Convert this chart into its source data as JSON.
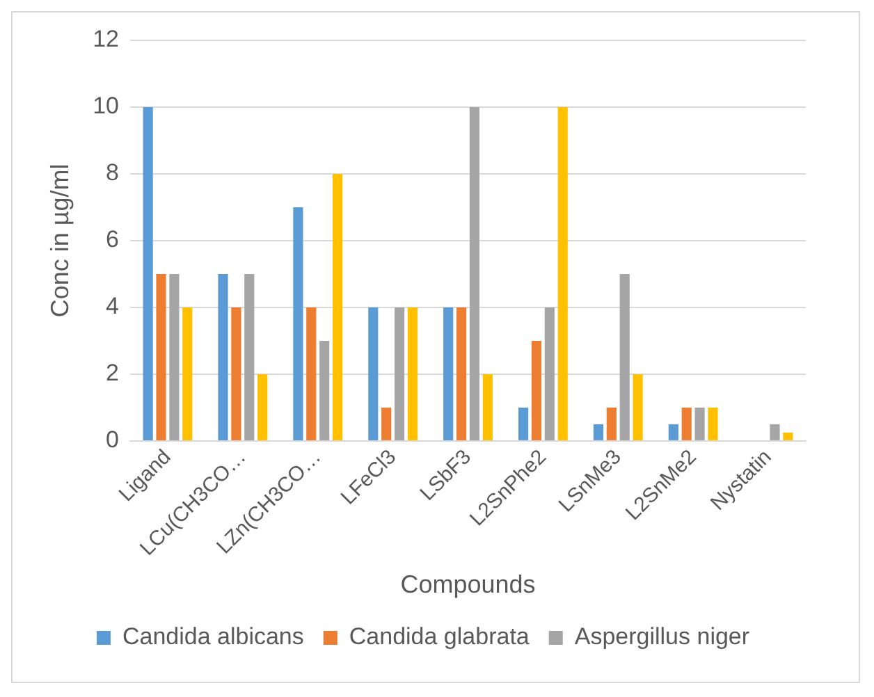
{
  "chart_data": {
    "type": "bar",
    "xlabel": "Compounds",
    "ylabel": "Conc in µg/ml",
    "categories": [
      "Ligand",
      "LCu(CH3CO…",
      "LZn(CH3CO…",
      "LFeCl3",
      "LSbF3",
      "L2SnPhe2",
      "LSnMe3",
      "L2SnMe2",
      "Nystatin"
    ],
    "series": [
      {
        "name": "Candida albicans",
        "color": "#5b9bd5",
        "values": [
          10,
          5,
          7,
          4,
          4,
          1,
          0.5,
          0.5,
          0
        ]
      },
      {
        "name": "Candida glabrata",
        "color": "#ed7d31",
        "values": [
          5,
          4,
          4,
          1,
          4,
          3,
          1,
          1,
          0
        ]
      },
      {
        "name": "Aspergillus niger",
        "color": "#a5a5a5",
        "values": [
          5,
          5,
          3,
          4,
          10,
          4,
          5,
          1,
          0.5
        ]
      },
      {
        "color": "#ffc000",
        "values": [
          4,
          2,
          8,
          4,
          2,
          10,
          2,
          1,
          0.25
        ]
      }
    ],
    "ylim": [
      0,
      12
    ],
    "yticks": [
      0,
      2,
      4,
      6,
      8,
      10,
      12
    ],
    "grid": "y",
    "legend": "bottom"
  }
}
